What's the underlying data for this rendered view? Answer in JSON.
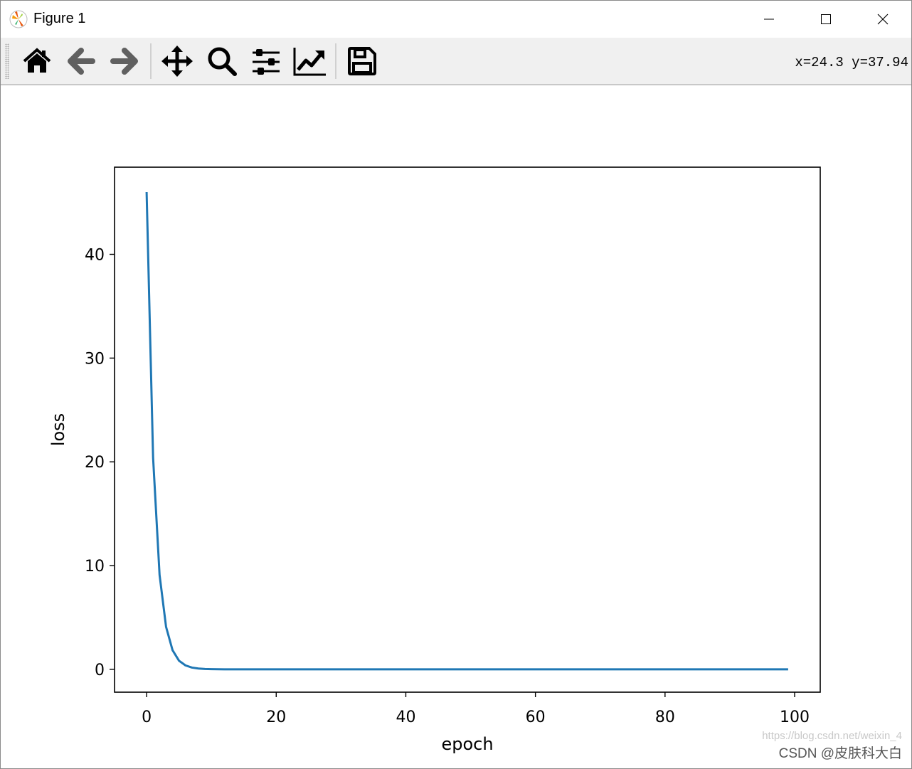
{
  "window": {
    "title": "Figure 1",
    "controls": [
      "minimize-icon",
      "maximize-icon",
      "close-icon"
    ]
  },
  "toolbar": {
    "buttons": [
      {
        "name": "home",
        "icon": "home-icon"
      },
      {
        "name": "back",
        "icon": "arrow-left-icon"
      },
      {
        "name": "forward",
        "icon": "arrow-right-icon"
      },
      {
        "name": "pan",
        "icon": "move-icon"
      },
      {
        "name": "zoom",
        "icon": "magnifier-icon"
      },
      {
        "name": "subplots",
        "icon": "sliders-icon"
      },
      {
        "name": "customize",
        "icon": "line-chart-icon"
      },
      {
        "name": "save",
        "icon": "floppy-disk-icon"
      }
    ],
    "coords": "x=24.3 y=37.94"
  },
  "watermark": {
    "url_text": "https://blog.csdn.net/weixin_4",
    "credit": "CSDN @皮肤科大白"
  },
  "colors": {
    "line": "#1f77b4",
    "toolbar_bg": "#f0f0f0"
  },
  "chart_data": {
    "type": "line",
    "title": "",
    "xlabel": "epoch",
    "ylabel": "loss",
    "xlim": [
      -4.95,
      103.95
    ],
    "ylim": [
      -2.2,
      48.4
    ],
    "xticks": [
      0,
      20,
      40,
      60,
      80,
      100
    ],
    "yticks": [
      0,
      10,
      20,
      30,
      40
    ],
    "grid": false,
    "series": [
      {
        "color": "#1f77b4",
        "x_start": 0,
        "values": [
          46.0,
          20.4,
          9.1,
          4.1,
          1.85,
          0.83,
          0.38,
          0.17,
          0.08,
          0.04,
          0.02,
          0.01,
          0.004,
          0.002,
          0.001,
          0,
          0,
          0,
          0,
          0,
          0,
          0,
          0,
          0,
          0,
          0,
          0,
          0,
          0,
          0,
          0,
          0,
          0,
          0,
          0,
          0,
          0,
          0,
          0,
          0,
          0,
          0,
          0,
          0,
          0,
          0,
          0,
          0,
          0,
          0,
          0,
          0,
          0,
          0,
          0,
          0,
          0,
          0,
          0,
          0,
          0,
          0,
          0,
          0,
          0,
          0,
          0,
          0,
          0,
          0,
          0,
          0,
          0,
          0,
          0,
          0,
          0,
          0,
          0,
          0,
          0,
          0,
          0,
          0,
          0,
          0,
          0,
          0,
          0,
          0,
          0,
          0,
          0,
          0,
          0,
          0,
          0,
          0,
          0,
          0
        ]
      }
    ]
  }
}
